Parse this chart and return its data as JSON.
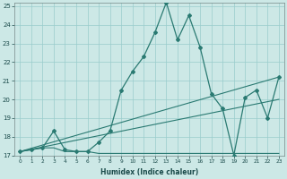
{
  "xlabel": "Humidex (Indice chaleur)",
  "bg_color": "#cce8e6",
  "line_color": "#2a7a72",
  "grid_color": "#99cccc",
  "main_x": [
    0,
    1,
    2,
    3,
    4,
    5,
    6,
    7,
    8,
    9,
    10,
    11,
    12,
    13,
    14,
    15,
    16,
    17,
    18,
    19,
    20,
    21,
    22,
    23
  ],
  "main_y": [
    17.2,
    17.3,
    17.4,
    18.3,
    17.3,
    17.2,
    17.2,
    17.7,
    18.3,
    20.5,
    21.5,
    22.3,
    23.6,
    25.2,
    23.2,
    24.5,
    22.8,
    20.3,
    19.5,
    17.0,
    20.1,
    20.5,
    19.0,
    21.2
  ],
  "min_x": [
    0,
    1,
    2,
    3,
    4,
    5,
    6,
    7,
    8,
    9,
    10,
    11,
    12,
    13,
    14,
    15,
    16,
    17,
    18,
    19,
    20,
    21,
    22,
    23
  ],
  "min_y": [
    17.2,
    17.3,
    17.4,
    17.4,
    17.2,
    17.2,
    17.2,
    17.1,
    17.1,
    17.1,
    17.1,
    17.1,
    17.1,
    17.1,
    17.1,
    17.1,
    17.1,
    17.1,
    17.1,
    17.1,
    17.1,
    17.1,
    17.1,
    17.1
  ],
  "trend1_x": [
    0,
    23
  ],
  "trend1_y": [
    17.2,
    21.2
  ],
  "trend2_x": [
    0,
    23
  ],
  "trend2_y": [
    17.2,
    20.0
  ],
  "ylim": [
    17,
    25
  ],
  "xlim": [
    -0.5,
    23.5
  ],
  "yticks": [
    17,
    18,
    19,
    20,
    21,
    22,
    23,
    24,
    25
  ],
  "xticks": [
    0,
    1,
    2,
    3,
    4,
    5,
    6,
    7,
    8,
    9,
    10,
    11,
    12,
    13,
    14,
    15,
    16,
    17,
    18,
    19,
    20,
    21,
    22,
    23
  ]
}
